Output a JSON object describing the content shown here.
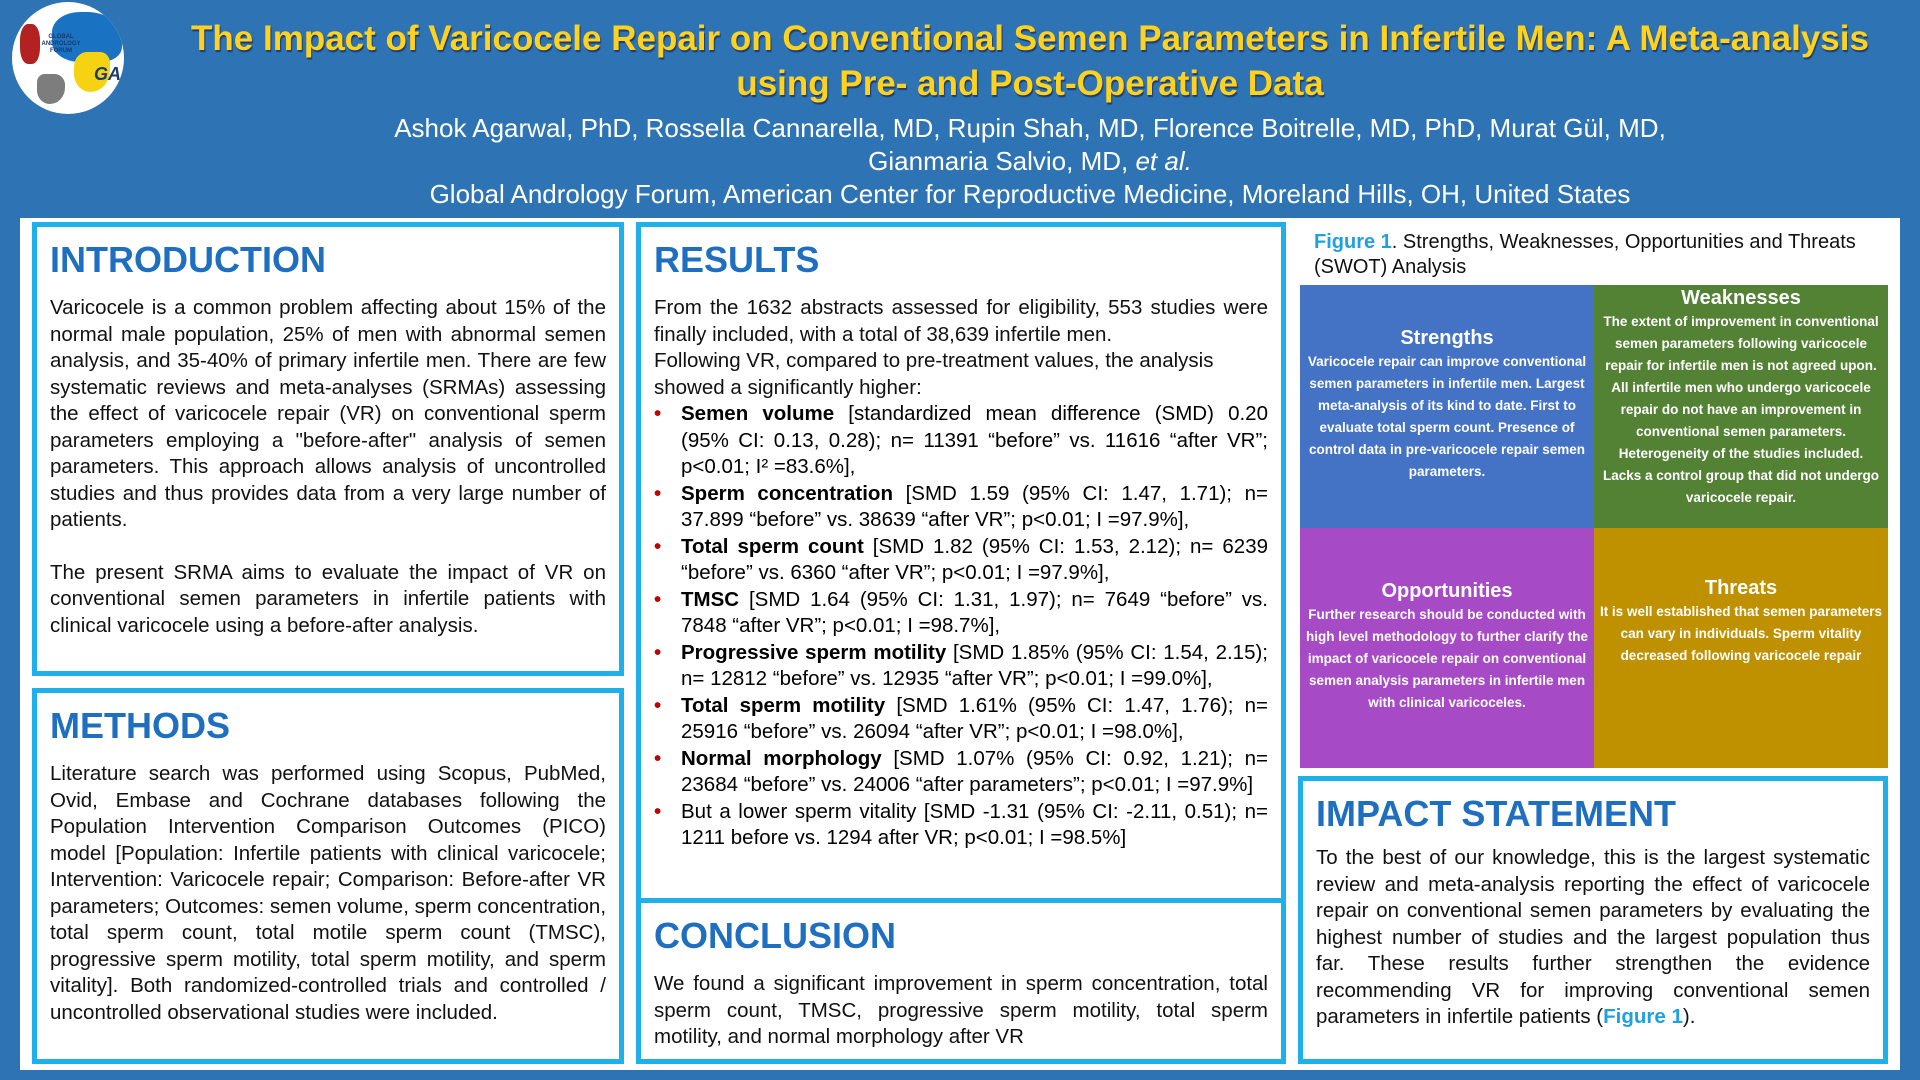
{
  "header": {
    "logo_text": "GLOBAL ANDROLOGY FORUM",
    "logo_mark": "GAF",
    "title": "The Impact of Varicocele Repair on Conventional Semen Parameters in Infertile Men: A Meta-analysis using Pre- and Post-Operative Data",
    "authors": "Ashok Agarwal, PhD, Rossella Cannarella, MD, Rupin Shah, MD, Florence Boitrelle, MD, PhD, Murat Gül, MD,",
    "authors_line2": "Gianmaria Salvio, MD,",
    "et_al": "et al.",
    "affiliation": "Global Andrology Forum, American Center for Reproductive Medicine, Moreland Hills, OH, United States"
  },
  "introduction": {
    "heading": "INTRODUCTION",
    "p1": "Varicocele is a common problem affecting about 15% of the normal male population, 25% of men with abnormal semen analysis, and 35-40% of primary infertile men. There are few systematic reviews and meta-analyses (SRMAs) assessing the effect of varicocele repair (VR) on conventional sperm parameters employing a \"before-after\" analysis of semen parameters. This approach allows analysis of uncontrolled studies and thus provides data from a  very large number of patients.",
    "p2": "The present SRMA aims to evaluate the impact of VR on conventional semen parameters in infertile patients with clinical varicocele using a before-after analysis."
  },
  "methods": {
    "heading": "METHODS",
    "p1": "Literature search was performed using Scopus, PubMed, Ovid, Embase and Cochrane databases following the Population Intervention Comparison Outcomes (PICO) model [Population: Infertile patients with clinical varicocele; Intervention: Varicocele repair; Comparison: Before-after VR parameters; Outcomes: semen volume, sperm concentration, total sperm count, total motile sperm count (TMSC), progressive sperm motility, total sperm motility, and sperm vitality]. Both randomized-controlled trials and controlled / uncontrolled observational studies were included."
  },
  "results": {
    "heading": "RESULTS",
    "intro1": "From the 1632 abstracts assessed for eligibility, 553 studies were finally included, with a total of 38,639 infertile men.",
    "intro2": "Following VR, compared to pre-treatment values, the analysis showed a significantly higher:",
    "bullet": "•",
    "items": [
      {
        "bold": "Semen volume",
        "text": " [standardized mean difference (SMD) 0.20 (95% CI: 0.13, 0.28); n= 11391 “before” vs. 11616 “after VR”; p<0.01; I² =83.6%],"
      },
      {
        "bold": "Sperm concentration",
        "text": " [SMD 1.59 (95% CI: 1.47, 1.71); n= 37.899 “before” vs. 38639 “after VR”; p<0.01; I =97.9%],"
      },
      {
        "bold": "Total sperm count",
        "text": " [SMD 1.82 (95% CI: 1.53, 2.12); n= 6239 “before” vs. 6360 “after VR”; p<0.01; I =97.9%],"
      },
      {
        "bold": "TMSC",
        "text": " [SMD 1.64 (95% CI: 1.31, 1.97); n= 7649 “before” vs. 7848 “after VR”; p<0.01; I =98.7%],"
      },
      {
        "bold": "Progressive sperm motility",
        "text": " [SMD 1.85% (95% CI: 1.54, 2.15); n= 12812 “before” vs. 12935 “after VR”; p<0.01; I =99.0%],"
      },
      {
        "bold": "Total sperm motility",
        "text": " [SMD 1.61% (95% CI: 1.47, 1.76); n= 25916 “before” vs. 26094 “after VR”; p<0.01; I =98.0%],"
      },
      {
        "bold": "Normal morphology",
        "text": " [SMD 1.07% (95% CI: 0.92, 1.21); n= 23684 “before” vs. 24006 “after parameters”; p<0.01; I =97.9%]"
      },
      {
        "bold": "",
        "text": "But a lower sperm vitality [SMD -1.31 (95% CI: -2.11, 0.51); n= 1211 before vs. 1294 after VR; p<0.01; I =98.5%]"
      }
    ]
  },
  "conclusion": {
    "heading": "CONCLUSION",
    "p1": "We found a significant improvement in sperm concentration, total sperm count, TMSC, progressive sperm motility, total sperm motility, and normal morphology after VR"
  },
  "figure": {
    "label": "Figure 1",
    "caption": ". Strengths, Weaknesses, Opportunities and Threats (SWOT) Analysis",
    "swot": {
      "strengths": {
        "title": "Strengths",
        "text": "Varicocele repair can improve conventional semen parameters in infertile men. Largest meta-analysis of its kind to date. First to evaluate total sperm count. Presence of control data in pre-varicocele repair semen parameters.",
        "color": "#4472c4"
      },
      "weaknesses": {
        "title": "Weaknesses",
        "text": "The extent of improvement in conventional semen parameters following varicocele repair for infertile men is not agreed upon. All infertile men who undergo varicocele repair do not have an improvement in conventional semen parameters. Heterogeneity of the studies included. Lacks a control group that did not undergo varicocele repair.",
        "color": "#548235"
      },
      "opportunities": {
        "title": "Opportunities",
        "text": "Further research should be conducted with high level methodology to further clarify the impact of varicocele repair on conventional semen analysis  parameters in infertile men with clinical varicoceles.",
        "color": "#a64ac6"
      },
      "threats": {
        "title": "Threats",
        "text": "It is well established that semen parameters can vary in individuals. Sperm vitality decreased following varicocele repair",
        "color": "#bf9000"
      }
    }
  },
  "impact": {
    "heading": "IMPACT STATEMENT",
    "p1": "To the best of our knowledge, this is the largest systematic review and meta-analysis reporting the effect of varicocele repair on conventional semen parameters by evaluating the highest number of studies and the largest population thus far. These results further strengthen the evidence recommending VR for improving conventional semen parameters in infertile patients (",
    "link": "Figure 1",
    "end": ")."
  }
}
